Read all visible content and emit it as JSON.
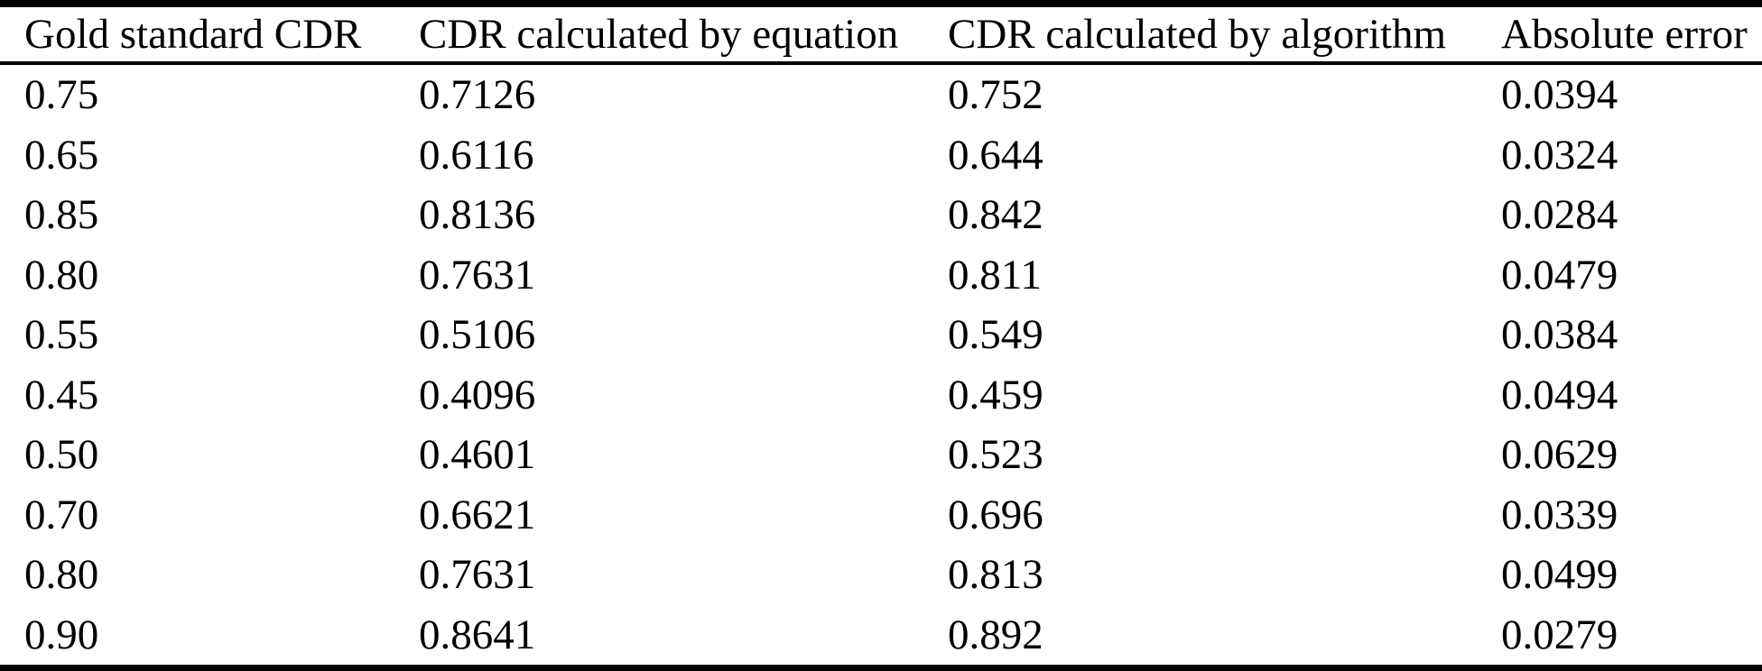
{
  "page": {
    "background_color": "#ffffff",
    "text_color": "#000000",
    "rule_color": "#000000"
  },
  "table": {
    "columns": [
      "Gold standard CDR",
      "CDR calculated by equation",
      "CDR calculated by algorithm",
      "Absolute error"
    ],
    "rows": [
      [
        "0.75",
        "0.7126",
        "0.752",
        "0.0394"
      ],
      [
        "0.65",
        "0.6116",
        "0.644",
        "0.0324"
      ],
      [
        "0.85",
        "0.8136",
        "0.842",
        "0.0284"
      ],
      [
        "0.80",
        "0.7631",
        "0.811",
        "0.0479"
      ],
      [
        "0.55",
        "0.5106",
        "0.549",
        "0.0384"
      ],
      [
        "0.45",
        "0.4096",
        "0.459",
        "0.0494"
      ],
      [
        "0.50",
        "0.4601",
        "0.523",
        "0.0629"
      ],
      [
        "0.70",
        "0.6621",
        "0.696",
        "0.0339"
      ],
      [
        "0.80",
        "0.7631",
        "0.813",
        "0.0499"
      ],
      [
        "0.90",
        "0.8641",
        "0.892",
        "0.0279"
      ]
    ]
  },
  "chart_data": {
    "type": "table",
    "columns": [
      "Gold standard CDR",
      "CDR calculated by equation",
      "CDR calculated by algorithm",
      "Absolute error"
    ],
    "gold_standard_cdr": [
      0.75,
      0.65,
      0.85,
      0.8,
      0.55,
      0.45,
      0.5,
      0.7,
      0.8,
      0.9
    ],
    "cdr_calculated_by_equation": [
      0.7126,
      0.6116,
      0.8136,
      0.7631,
      0.5106,
      0.4096,
      0.4601,
      0.6621,
      0.7631,
      0.8641
    ],
    "cdr_calculated_by_algorithm": [
      0.752,
      0.644,
      0.842,
      0.811,
      0.549,
      0.459,
      0.523,
      0.696,
      0.813,
      0.892
    ],
    "absolute_error": [
      0.0394,
      0.0324,
      0.0284,
      0.0479,
      0.0384,
      0.0494,
      0.0629,
      0.0339,
      0.0499,
      0.0279
    ]
  }
}
